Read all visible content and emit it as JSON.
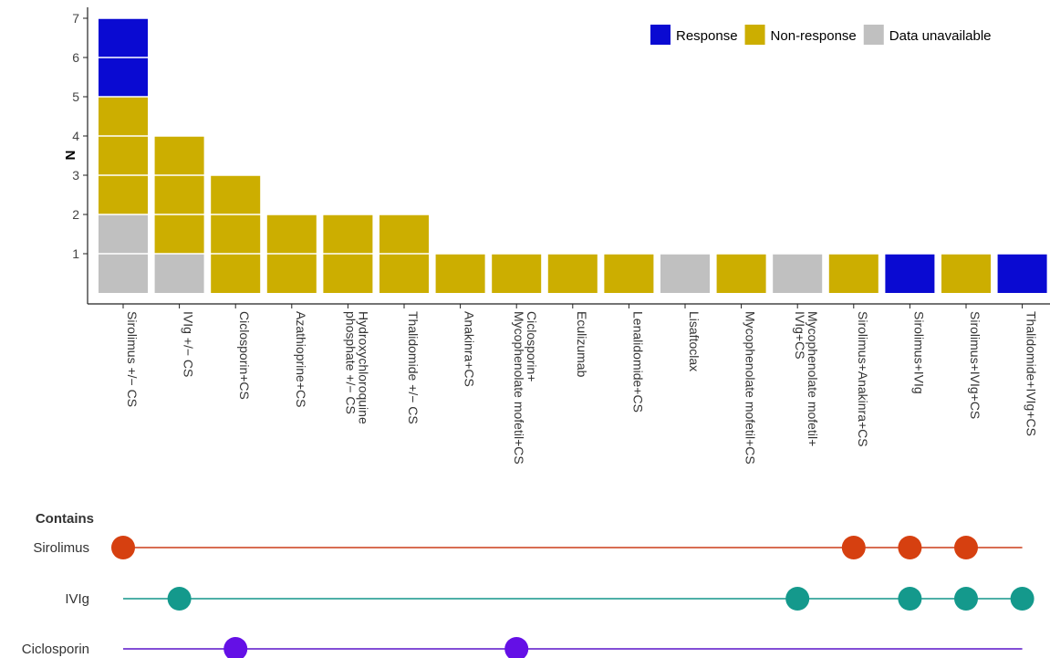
{
  "chart_data": {
    "type": "bar",
    "stacked": true,
    "ylabel": "N",
    "yticks": [
      1,
      2,
      3,
      4,
      5,
      6,
      7
    ],
    "ylim": [
      0,
      7
    ],
    "grid": false,
    "legend_position": "top-right",
    "categories": [
      [
        "Sirolimus +/− CS"
      ],
      [
        "IVIg +/− CS"
      ],
      [
        "Ciclosporin+CS"
      ],
      [
        "Azathioprine+CS"
      ],
      [
        "Hydroxychloroquine",
        "phosphate +/− CS"
      ],
      [
        "Thalidomide +/− CS"
      ],
      [
        "Anakinra+CS"
      ],
      [
        "Ciclosporin+",
        "Mycophenolate mofetil+CS"
      ],
      [
        "Eculizumab"
      ],
      [
        "Lenalidomide+CS"
      ],
      [
        "Lisaftoclax"
      ],
      [
        "Mycophenolate mofetil+CS"
      ],
      [
        "Mycophenolate mofetil+",
        "IVIg+CS"
      ],
      [
        "Sirolimus+Anakinra+CS"
      ],
      [
        "Sirolimus+IVIg"
      ],
      [
        "Sirolimus+IVIg+CS"
      ],
      [
        "Thalidomide+IVIg+CS"
      ]
    ],
    "series": [
      {
        "name": "Data unavailable",
        "color": "#c0c0c0",
        "values": [
          2,
          1,
          0,
          0,
          0,
          0,
          0,
          0,
          0,
          0,
          1,
          0,
          1,
          0,
          0,
          0,
          0
        ]
      },
      {
        "name": "Non-response",
        "color": "#ccae00",
        "values": [
          3,
          3,
          3,
          2,
          2,
          2,
          1,
          1,
          1,
          1,
          0,
          1,
          0,
          1,
          0,
          1,
          0
        ]
      },
      {
        "name": "Response",
        "color": "#0a0ad2",
        "values": [
          2,
          0,
          0,
          0,
          0,
          0,
          0,
          0,
          0,
          0,
          0,
          0,
          0,
          0,
          1,
          0,
          1
        ]
      }
    ],
    "legend_order": [
      "Response",
      "Non-response",
      "Data unavailable"
    ]
  },
  "contains": {
    "title": "Contains",
    "rows": [
      {
        "name": "Sirolimus",
        "color": "#cc3d18",
        "dot_color": "#d64010",
        "members": [
          0,
          13,
          14,
          15
        ]
      },
      {
        "name": "IVIg",
        "color": "#14968a",
        "dot_color": "#14998c",
        "members": [
          1,
          12,
          14,
          15,
          16
        ]
      },
      {
        "name": "Ciclosporin",
        "color": "#5a14c8",
        "dot_color": "#6410e6",
        "members": [
          2,
          7
        ]
      }
    ]
  }
}
